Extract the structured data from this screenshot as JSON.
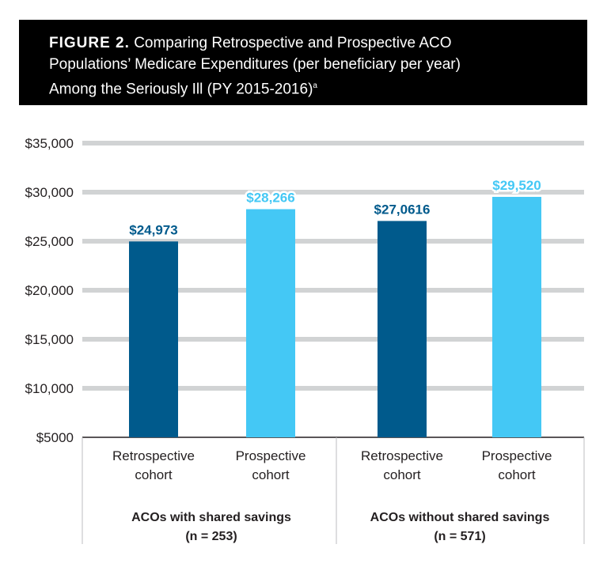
{
  "title": {
    "prefix": "FIGURE 2.",
    "line1": "Comparing Retrospective and Prospective ACO",
    "line2": "Populations’ Medicare Expenditures (per beneficiary per year)",
    "line3": "Among the Seriously Ill (PY 2015-2016)",
    "footnote_mark": "a"
  },
  "chart_data": {
    "type": "bar",
    "ylim": [
      5000,
      35000
    ],
    "yticks": [
      5000,
      10000,
      15000,
      20000,
      25000,
      30000,
      35000
    ],
    "ytick_labels": [
      "$5000",
      "$10,000",
      "$15,000",
      "$20,000",
      "$25,000",
      "$30,000",
      "$35,000"
    ],
    "grid": true,
    "groups": [
      {
        "label_line1": "ACOs with shared savings",
        "label_line2": "(n = 253)",
        "bars": [
          {
            "cat_line1": "Retrospective",
            "cat_line2": "cohort",
            "value": 24973,
            "label": "$24,973",
            "color": "#005a8c"
          },
          {
            "cat_line1": "Prospective",
            "cat_line2": "cohort",
            "value": 28266,
            "label": "$28,266",
            "color": "#44c8f5"
          }
        ]
      },
      {
        "label_line1": "ACOs without shared savings",
        "label_line2": "(n = 571)",
        "bars": [
          {
            "cat_line1": "Retrospective",
            "cat_line2": "cohort",
            "value": 27061.6,
            "label": "$27,0616",
            "color": "#005a8c"
          },
          {
            "cat_line1": "Prospective",
            "cat_line2": "cohort",
            "value": 29520,
            "label": "$29,520",
            "color": "#44c8f5"
          }
        ]
      }
    ]
  },
  "colors": {
    "title_bg": "#000000",
    "grid": "#d1d3d4",
    "retrospective": "#005a8c",
    "prospective": "#44c8f5"
  }
}
